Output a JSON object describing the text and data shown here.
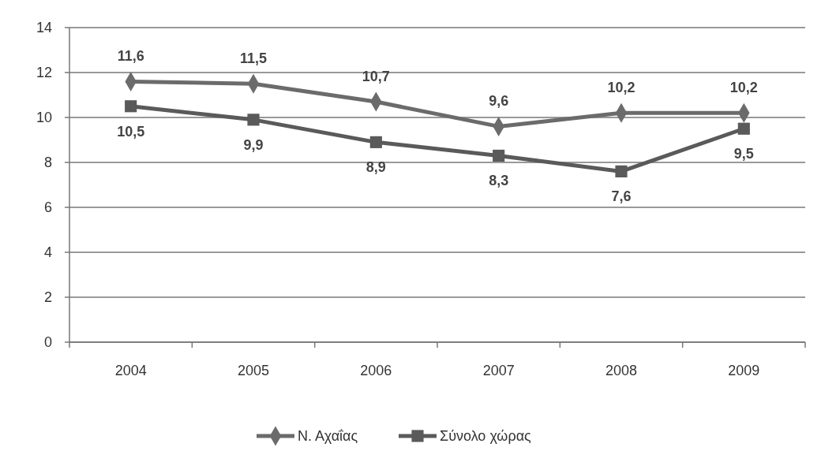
{
  "chart_data": {
    "type": "line",
    "categories": [
      "2004",
      "2005",
      "2006",
      "2007",
      "2008",
      "2009"
    ],
    "series": [
      {
        "name": "Ν. Αχαΐας",
        "color": "#6b6b6b",
        "marker": "diamond",
        "values": [
          11.6,
          11.5,
          10.7,
          9.6,
          10.2,
          10.2
        ],
        "value_labels": [
          "11,6",
          "11,5",
          "10,7",
          "9,6",
          "10,2",
          "10,2"
        ]
      },
      {
        "name": "Σύνολο χώρας",
        "color": "#5a5a5a",
        "marker": "square",
        "values": [
          10.5,
          9.9,
          8.9,
          8.3,
          7.6,
          9.5
        ],
        "value_labels": [
          "10,5",
          "9,9",
          "8,9",
          "8,3",
          "7,6",
          "9,5"
        ]
      }
    ],
    "ylim": [
      0,
      14
    ],
    "yticks": [
      0,
      2,
      4,
      6,
      8,
      10,
      12,
      14
    ],
    "grid": "y",
    "legend": "bottom",
    "line_style": "solid"
  }
}
